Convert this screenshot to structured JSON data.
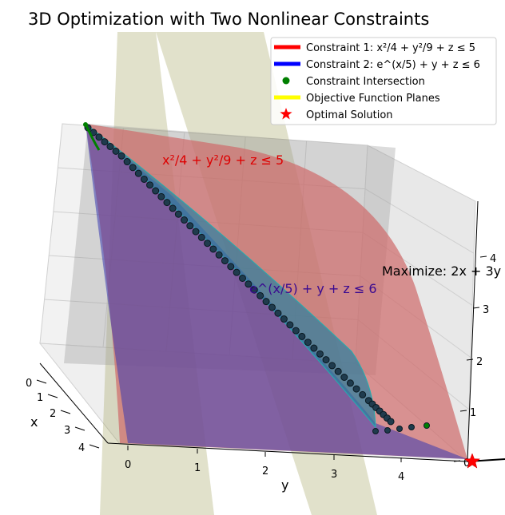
{
  "chart_data": {
    "type": "surface3d",
    "title": "3D Optimization with Two Nonlinear Constraints",
    "xlabel": "x",
    "ylabel": "y",
    "zlabel": "",
    "xlim": [
      0,
      4.5
    ],
    "ylim": [
      0,
      5
    ],
    "zlim": [
      0,
      4.5
    ],
    "x_ticks": [
      "0",
      "1",
      "2",
      "3",
      "4"
    ],
    "y_ticks": [
      "0",
      "1",
      "2",
      "3",
      "4"
    ],
    "z_ticks": [
      "0",
      "1",
      "2",
      "3",
      "4"
    ],
    "legend": [
      {
        "label": "Constraint 1: x²/4 + y²/9 + z ≤ 5",
        "color": "#ff0000",
        "marker": "line"
      },
      {
        "label": "Constraint 2: e^(x/5) + y + z ≤ 6",
        "color": "#0000ff",
        "marker": "line"
      },
      {
        "label": "Constraint Intersection",
        "color": "#007f00",
        "marker": "dot"
      },
      {
        "label": "Objective Function Planes",
        "color": "#ffff00",
        "marker": "line"
      },
      {
        "label": "Optimal Solution",
        "color": "#ff0000",
        "marker": "star"
      }
    ],
    "legend_position": "top-right",
    "annotations": [
      {
        "text": "x²/4 + y²/9 + z ≤ 5",
        "color": "#dd0000"
      },
      {
        "text": "e^(x/5) + y + z ≤ 6",
        "color": "#3a0a90"
      },
      {
        "text": "Maximize: 2x + 3y",
        "color": "#000000"
      }
    ],
    "optimal_solution": {
      "x": 0,
      "y": 5,
      "z": 0
    },
    "intersection_curve": [
      {
        "y": 0.0,
        "z": 4.4
      },
      {
        "y": 0.5,
        "z": 4.0
      },
      {
        "y": 1.0,
        "z": 3.5
      },
      {
        "y": 1.5,
        "z": 3.0
      },
      {
        "y": 2.0,
        "z": 2.5
      },
      {
        "y": 2.5,
        "z": 2.0
      },
      {
        "y": 3.0,
        "z": 1.5
      },
      {
        "y": 3.5,
        "z": 1.0
      },
      {
        "y": 4.0,
        "z": 0.5
      },
      {
        "y": 4.3,
        "z": 0.2
      }
    ],
    "grid": true
  }
}
